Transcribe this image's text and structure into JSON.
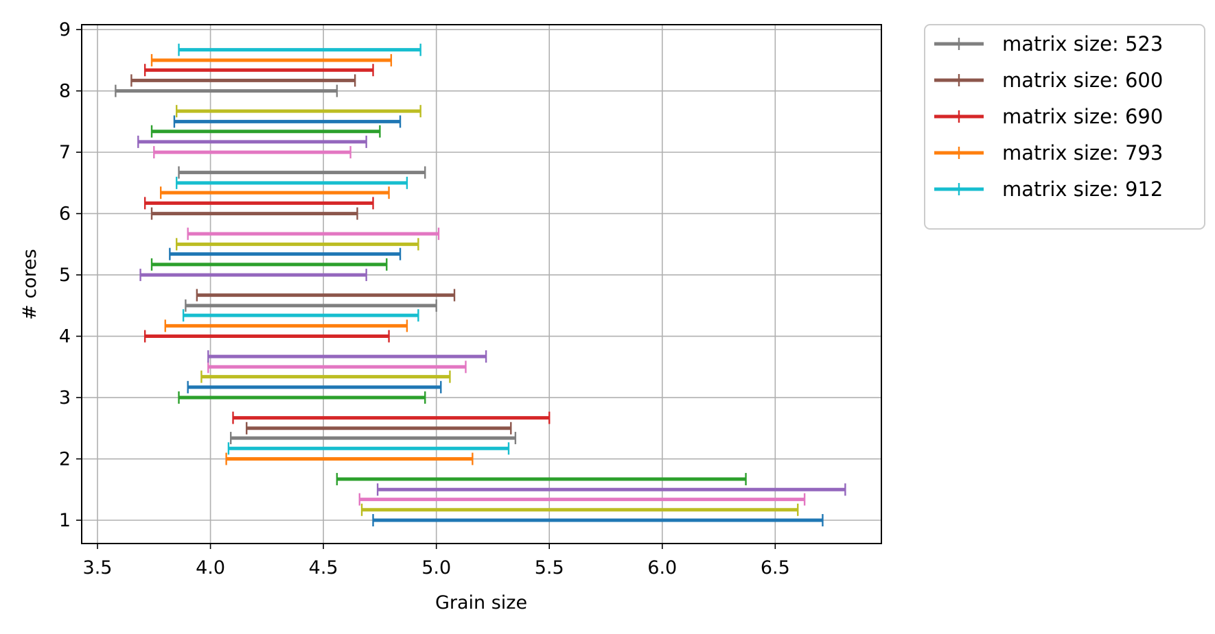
{
  "chart_data": {
    "type": "range-bar",
    "xlabel": "Grain size",
    "ylabel": "# cores",
    "xlim": [
      3.43,
      6.97
    ],
    "ylim": [
      0.62,
      9.08
    ],
    "x_ticks": [
      "3.5",
      "4.0",
      "4.5",
      "5.0",
      "5.5",
      "6.0",
      "6.5"
    ],
    "y_ticks": [
      "1",
      "2",
      "3",
      "4",
      "5",
      "6",
      "7",
      "8",
      "9"
    ],
    "grid": true,
    "legend_position": "outside-top-right",
    "legend": [
      {
        "label": "matrix size: 523",
        "color": "#7f7f7f"
      },
      {
        "label": "matrix size: 600",
        "color": "#8c564b"
      },
      {
        "label": "matrix size: 690",
        "color": "#d62728"
      },
      {
        "label": "matrix size: 793",
        "color": "#ff7f0e"
      },
      {
        "label": "matrix size: 912",
        "color": "#17becf"
      }
    ],
    "bars": [
      {
        "y": 1.0,
        "x_start": 4.72,
        "x_end": 6.71,
        "color": "#1f77b4"
      },
      {
        "y": 1.17,
        "x_start": 4.67,
        "x_end": 6.6,
        "color": "#bcbd22"
      },
      {
        "y": 1.34,
        "x_start": 4.66,
        "x_end": 6.63,
        "color": "#e377c2"
      },
      {
        "y": 1.5,
        "x_start": 4.74,
        "x_end": 6.81,
        "color": "#9467bd"
      },
      {
        "y": 1.67,
        "x_start": 4.56,
        "x_end": 6.37,
        "color": "#2ca02c"
      },
      {
        "y": 2.0,
        "x_start": 4.07,
        "x_end": 5.16,
        "color": "#ff7f0e"
      },
      {
        "y": 2.17,
        "x_start": 4.08,
        "x_end": 5.32,
        "color": "#17becf"
      },
      {
        "y": 2.34,
        "x_start": 4.09,
        "x_end": 5.35,
        "color": "#7f7f7f"
      },
      {
        "y": 2.5,
        "x_start": 4.16,
        "x_end": 5.33,
        "color": "#8c564b"
      },
      {
        "y": 2.67,
        "x_start": 4.1,
        "x_end": 5.5,
        "color": "#d62728"
      },
      {
        "y": 3.0,
        "x_start": 3.86,
        "x_end": 4.95,
        "color": "#2ca02c"
      },
      {
        "y": 3.17,
        "x_start": 3.9,
        "x_end": 5.02,
        "color": "#1f77b4"
      },
      {
        "y": 3.34,
        "x_start": 3.96,
        "x_end": 5.06,
        "color": "#bcbd22"
      },
      {
        "y": 3.5,
        "x_start": 3.99,
        "x_end": 5.13,
        "color": "#e377c2"
      },
      {
        "y": 3.67,
        "x_start": 3.99,
        "x_end": 5.22,
        "color": "#9467bd"
      },
      {
        "y": 4.0,
        "x_start": 3.71,
        "x_end": 4.79,
        "color": "#d62728"
      },
      {
        "y": 4.17,
        "x_start": 3.8,
        "x_end": 4.87,
        "color": "#ff7f0e"
      },
      {
        "y": 4.34,
        "x_start": 3.88,
        "x_end": 4.92,
        "color": "#17becf"
      },
      {
        "y": 4.5,
        "x_start": 3.89,
        "x_end": 5.0,
        "color": "#7f7f7f"
      },
      {
        "y": 4.67,
        "x_start": 3.94,
        "x_end": 5.08,
        "color": "#8c564b"
      },
      {
        "y": 5.0,
        "x_start": 3.69,
        "x_end": 4.69,
        "color": "#9467bd"
      },
      {
        "y": 5.17,
        "x_start": 3.74,
        "x_end": 4.78,
        "color": "#2ca02c"
      },
      {
        "y": 5.34,
        "x_start": 3.82,
        "x_end": 4.84,
        "color": "#1f77b4"
      },
      {
        "y": 5.5,
        "x_start": 3.85,
        "x_end": 4.92,
        "color": "#bcbd22"
      },
      {
        "y": 5.67,
        "x_start": 3.9,
        "x_end": 5.01,
        "color": "#e377c2"
      },
      {
        "y": 6.0,
        "x_start": 3.74,
        "x_end": 4.65,
        "color": "#8c564b"
      },
      {
        "y": 6.17,
        "x_start": 3.71,
        "x_end": 4.72,
        "color": "#d62728"
      },
      {
        "y": 6.34,
        "x_start": 3.78,
        "x_end": 4.79,
        "color": "#ff7f0e"
      },
      {
        "y": 6.5,
        "x_start": 3.85,
        "x_end": 4.87,
        "color": "#17becf"
      },
      {
        "y": 6.67,
        "x_start": 3.86,
        "x_end": 4.95,
        "color": "#7f7f7f"
      },
      {
        "y": 7.0,
        "x_start": 3.75,
        "x_end": 4.62,
        "color": "#e377c2"
      },
      {
        "y": 7.17,
        "x_start": 3.68,
        "x_end": 4.69,
        "color": "#9467bd"
      },
      {
        "y": 7.34,
        "x_start": 3.74,
        "x_end": 4.75,
        "color": "#2ca02c"
      },
      {
        "y": 7.5,
        "x_start": 3.84,
        "x_end": 4.84,
        "color": "#1f77b4"
      },
      {
        "y": 7.67,
        "x_start": 3.85,
        "x_end": 4.93,
        "color": "#bcbd22"
      },
      {
        "y": 8.0,
        "x_start": 3.58,
        "x_end": 4.56,
        "color": "#7f7f7f"
      },
      {
        "y": 8.17,
        "x_start": 3.65,
        "x_end": 4.64,
        "color": "#8c564b"
      },
      {
        "y": 8.34,
        "x_start": 3.71,
        "x_end": 4.72,
        "color": "#d62728"
      },
      {
        "y": 8.5,
        "x_start": 3.74,
        "x_end": 4.8,
        "color": "#ff7f0e"
      },
      {
        "y": 8.67,
        "x_start": 3.86,
        "x_end": 4.93,
        "color": "#17becf"
      }
    ]
  }
}
